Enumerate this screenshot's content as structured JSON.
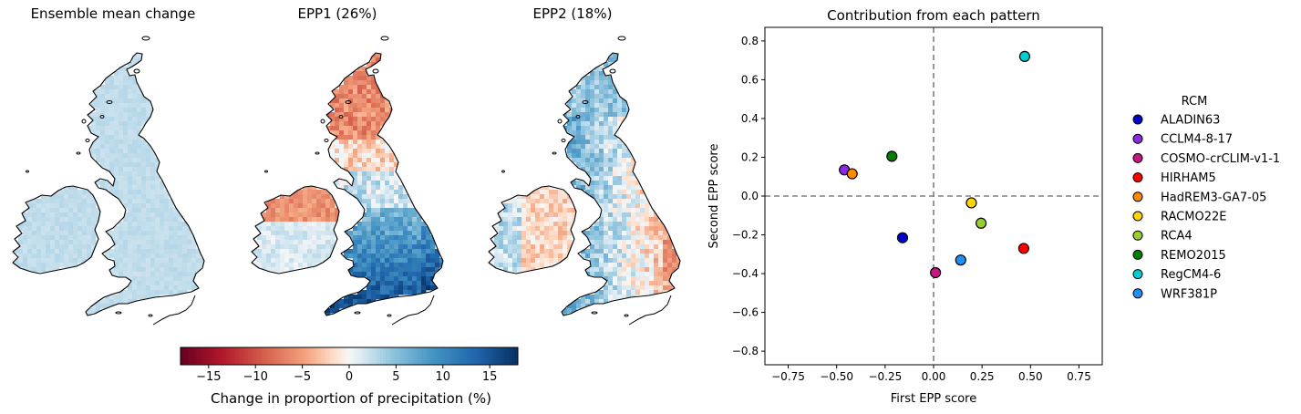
{
  "chart_data": [
    {
      "type": "heatmap",
      "title": "Ensemble mean change",
      "pattern": "uniform-light-blue"
    },
    {
      "type": "heatmap",
      "title": "EPP1 (26%)",
      "pattern": "north-red-south-blue"
    },
    {
      "type": "heatmap",
      "title": "EPP2 (18%)",
      "pattern": "west-blue-east-red"
    },
    {
      "type": "colorbar",
      "label": "Change in proportion of precipitation (%)",
      "range": [
        -18,
        18
      ],
      "ticks": [
        -15,
        -10,
        -5,
        0,
        5,
        10,
        15
      ],
      "tick_labels": [
        "−15",
        "−10",
        "−5",
        "0",
        "5",
        "10",
        "15"
      ],
      "colormap": "RdBu"
    },
    {
      "type": "scatter",
      "title": "Contribution from each pattern",
      "xlabel": "First EPP score",
      "ylabel": "Second EPP score",
      "xlim": [
        -0.87,
        0.87
      ],
      "ylim": [
        -0.87,
        0.87
      ],
      "xticks": [
        -0.75,
        -0.5,
        -0.25,
        0,
        0.25,
        0.5,
        0.75
      ],
      "xtick_labels": [
        "−0.75",
        "−0.50",
        "−0.25",
        "0.00",
        "0.25",
        "0.50",
        "0.75"
      ],
      "yticks": [
        -0.8,
        -0.6,
        -0.4,
        -0.2,
        0,
        0.2,
        0.4,
        0.6,
        0.8
      ],
      "ytick_labels": [
        "−0.8",
        "−0.6",
        "−0.4",
        "−0.2",
        "0.0",
        "0.2",
        "0.4",
        "0.6",
        "0.8"
      ],
      "legend_title": "RCM",
      "legend_position": "outside-right",
      "grid": false,
      "series": [
        {
          "name": "ALADIN63",
          "color": "#0000cd",
          "x": -0.16,
          "y": -0.215
        },
        {
          "name": "CCLM4-8-17",
          "color": "#8a2be2",
          "x": -0.46,
          "y": 0.135
        },
        {
          "name": "COSMO-crCLIM-v1-1",
          "color": "#c71585",
          "x": 0.01,
          "y": -0.395
        },
        {
          "name": "HIRHAM5",
          "color": "#ff0000",
          "x": 0.465,
          "y": -0.27
        },
        {
          "name": "HadREM3-GA7-05",
          "color": "#ff8c00",
          "x": -0.42,
          "y": 0.115
        },
        {
          "name": "RACMO22E",
          "color": "#ffd700",
          "x": 0.195,
          "y": -0.035
        },
        {
          "name": "RCA4",
          "color": "#9acd32",
          "x": 0.245,
          "y": -0.14
        },
        {
          "name": "REMO2015",
          "color": "#008000",
          "x": -0.215,
          "y": 0.205
        },
        {
          "name": "RegCM4-6",
          "color": "#00ced1",
          "x": 0.47,
          "y": 0.72
        },
        {
          "name": "WRF381P",
          "color": "#1e90ff",
          "x": 0.14,
          "y": -0.33
        }
      ]
    }
  ]
}
